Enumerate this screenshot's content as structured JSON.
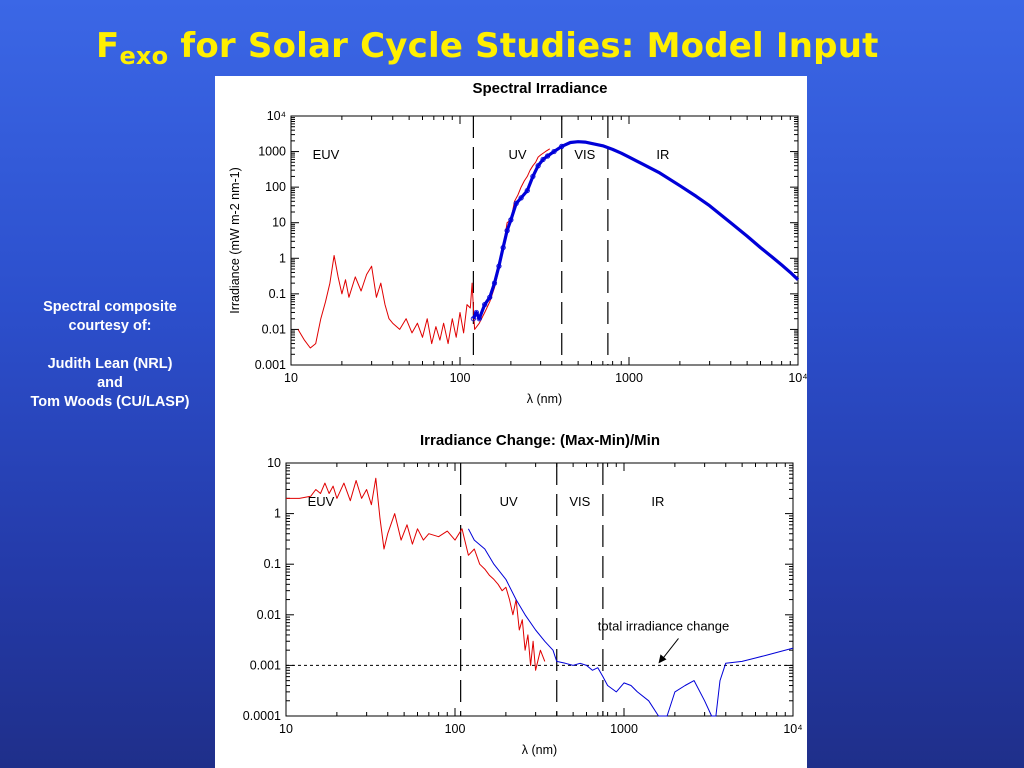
{
  "slide": {
    "title_main": "F",
    "title_sub": "exo",
    "title_rest": " for Solar Cycle Studies: Model Input"
  },
  "credit": {
    "line1": "Spectral composite",
    "line2": "courtesy of:",
    "line3": "Judith Lean (NRL)",
    "line4": "and",
    "line5": "Tom Woods (CU/LASP)"
  },
  "colors": {
    "measured": "#e00000",
    "model": "#0000d8",
    "title": "#ffef00"
  },
  "chart_data": [
    {
      "type": "line",
      "title": "Spectral Irradiance",
      "xlabel": "λ (nm)",
      "ylabel": "Irradiance (mW m-2 nm-1)",
      "x_scale": "log",
      "y_scale": "log",
      "xlim": [
        10,
        10000
      ],
      "ylim": [
        0.001,
        10000
      ],
      "x_ticks": [
        "10",
        "100",
        "1000",
        "10⁴"
      ],
      "y_ticks": [
        "0.001",
        "0.01",
        "0.1",
        "1",
        "10",
        "100",
        "1000",
        "10⁴"
      ],
      "region_boundaries_nm": [
        120,
        400,
        750
      ],
      "regions": [
        "EUV",
        "UV",
        "VIS",
        "IR"
      ],
      "grid": false,
      "series": [
        {
          "color": "#e00000",
          "x": [
            11,
            12,
            13,
            14,
            15,
            16,
            17,
            18,
            19,
            20,
            21,
            22,
            24,
            26,
            28,
            30,
            32,
            34,
            36,
            38,
            40,
            44,
            48,
            52,
            56,
            60,
            64,
            68,
            72,
            76,
            80,
            85,
            90,
            95,
            100,
            105,
            110,
            115,
            118,
            122,
            130,
            140,
            150,
            160,
            170,
            180,
            190,
            200,
            210,
            220,
            230,
            240,
            250,
            260,
            270,
            280,
            290,
            300,
            320,
            340
          ],
          "y": [
            0.01,
            0.005,
            0.003,
            0.004,
            0.02,
            0.06,
            0.2,
            1.2,
            0.3,
            0.1,
            0.25,
            0.08,
            0.3,
            0.12,
            0.35,
            0.6,
            0.08,
            0.2,
            0.05,
            0.02,
            0.015,
            0.01,
            0.02,
            0.008,
            0.015,
            0.006,
            0.02,
            0.004,
            0.012,
            0.005,
            0.015,
            0.004,
            0.02,
            0.006,
            0.03,
            0.008,
            0.05,
            0.04,
            0.2,
            0.01,
            0.015,
            0.03,
            0.06,
            0.15,
            0.5,
            2,
            10,
            12,
            40,
            60,
            100,
            150,
            200,
            300,
            400,
            500,
            700,
            800,
            1000,
            1200
          ]
        },
        {
          "color": "#0000d8",
          "x": [
            120,
            125,
            130,
            140,
            150,
            160,
            170,
            180,
            190,
            200,
            215,
            230,
            250,
            270,
            290,
            310,
            330,
            360,
            400,
            450,
            500,
            550,
            600,
            700,
            800,
            900,
            1000,
            1200,
            1500,
            2000,
            2500,
            3000,
            4000,
            5000,
            6000,
            7000,
            8000,
            9000,
            10000
          ],
          "y": [
            0.02,
            0.03,
            0.02,
            0.05,
            0.08,
            0.2,
            0.6,
            2,
            6,
            12,
            35,
            50,
            80,
            200,
            400,
            600,
            750,
            1000,
            1400,
            1800,
            1900,
            1850,
            1700,
            1450,
            1150,
            900,
            700,
            450,
            260,
            110,
            55,
            30,
            10,
            4.2,
            2,
            1.1,
            0.65,
            0.4,
            0.25
          ]
        }
      ]
    },
    {
      "type": "line",
      "title": "Irradiance Change:  (Max-Min)/Min",
      "xlabel": "λ (nm)",
      "ylabel": "",
      "x_scale": "log",
      "y_scale": "log",
      "xlim": [
        10,
        10000
      ],
      "ylim": [
        0.0001,
        10
      ],
      "x_ticks": [
        "10",
        "100",
        "1000",
        "10⁴"
      ],
      "y_ticks": [
        "0.0001",
        "0.001",
        "0.01",
        "0.1",
        "1",
        "10"
      ],
      "region_boundaries_nm": [
        108,
        400,
        750
      ],
      "regions": [
        "EUV",
        "UV",
        "VIS",
        "IR"
      ],
      "reference_line": {
        "y": 0.001,
        "style": "dashed"
      },
      "annotation": {
        "text": "total irradiance change",
        "arrow_to": [
          1600,
          0.001
        ]
      },
      "grid": false,
      "series": [
        {
          "color": "#e00000",
          "x": [
            10,
            12,
            14,
            15,
            16,
            17,
            18,
            19,
            20,
            22,
            24,
            26,
            28,
            30,
            32,
            34,
            36,
            38,
            40,
            44,
            48,
            52,
            56,
            60,
            65,
            70,
            80,
            90,
            100,
            110,
            120,
            130,
            140,
            150,
            160,
            170,
            180,
            190,
            200,
            210,
            220,
            230,
            240,
            250,
            260,
            270,
            280,
            290,
            300,
            320,
            340
          ],
          "y": [
            2,
            2,
            2.2,
            3,
            2.5,
            4,
            2.5,
            3.5,
            2,
            4,
            1.8,
            4.5,
            2,
            3,
            1.5,
            5,
            0.8,
            0.2,
            0.4,
            1,
            0.3,
            0.6,
            0.25,
            0.5,
            0.3,
            0.4,
            0.35,
            0.45,
            0.3,
            0.5,
            0.15,
            0.2,
            0.1,
            0.08,
            0.06,
            0.05,
            0.04,
            0.03,
            0.035,
            0.02,
            0.01,
            0.02,
            0.005,
            0.008,
            0.002,
            0.004,
            0.001,
            0.003,
            0.0008,
            0.002,
            0.0012
          ]
        },
        {
          "color": "#0000d8",
          "x": [
            120,
            130,
            150,
            170,
            200,
            230,
            260,
            300,
            340,
            380,
            400,
            450,
            500,
            550,
            600,
            650,
            700,
            750,
            800,
            900,
            1000,
            1100,
            1200,
            1400,
            1600,
            1800,
            2000,
            2300,
            2600,
            3000,
            3300,
            3500,
            3700,
            4000,
            5000,
            6000,
            7000,
            8000,
            10000
          ],
          "y": [
            0.5,
            0.3,
            0.2,
            0.1,
            0.05,
            0.02,
            0.01,
            0.005,
            0.003,
            0.002,
            0.0012,
            0.0011,
            0.001,
            0.0011,
            0.001,
            0.0008,
            0.0009,
            0.0006,
            0.0004,
            0.0003,
            0.00045,
            0.0004,
            0.0003,
            0.0002,
            0.0001,
            0.0001,
            0.0003,
            0.0004,
            0.0005,
            0.0002,
            0.0001,
            0.0001,
            0.0005,
            0.0011,
            0.0012,
            0.0014,
            0.0016,
            0.0018,
            0.0022
          ]
        }
      ]
    }
  ]
}
